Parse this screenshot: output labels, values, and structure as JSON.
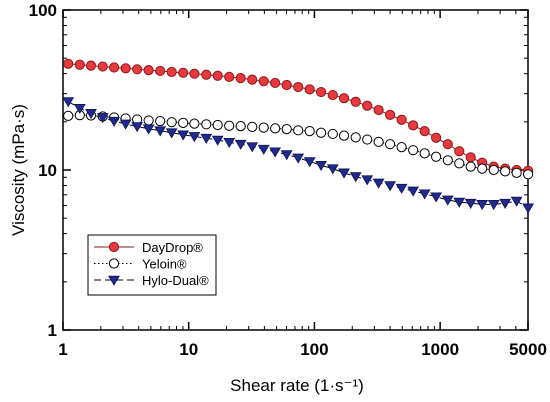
{
  "chart_data": {
    "type": "scatter",
    "title": "",
    "xlabel": "Shear rate (1·s⁻¹)",
    "ylabel": "Viscosity (mPa·s)",
    "x_scale": "log",
    "y_scale": "log",
    "xlim": [
      1,
      5000
    ],
    "ylim": [
      1,
      100
    ],
    "x_ticks": [
      {
        "value": 1,
        "label": "1"
      },
      {
        "value": 10,
        "label": "10"
      },
      {
        "value": 100,
        "label": "100"
      },
      {
        "value": 1000,
        "label": "1000"
      },
      {
        "value": 5000,
        "label": "5000"
      }
    ],
    "y_ticks": [
      {
        "value": 1,
        "label": "1"
      },
      {
        "value": 10,
        "label": "10"
      },
      {
        "value": 100,
        "label": "100"
      }
    ],
    "grid": false,
    "legend_position": "bottom-left",
    "x": [
      1.1,
      1.36,
      1.67,
      2.07,
      2.55,
      3.15,
      3.89,
      4.8,
      5.93,
      7.32,
      9.03,
      11.1,
      13.8,
      17.0,
      21.0,
      25.9,
      32.0,
      39.5,
      48.7,
      60.2,
      74.3,
      91.7,
      113,
      140,
      172,
      213,
      263,
      324,
      400,
      494,
      610,
      753,
      929,
      1150,
      1420,
      1750,
      2160,
      2670,
      3290,
      4060,
      5010
    ],
    "series": [
      {
        "name": "DayDrop®",
        "marker": "circle",
        "color": "#e8393f",
        "edge_color": "#8a1a1a",
        "line_style": "solid",
        "line_color": "#8b1a1a",
        "values": [
          46.1,
          45.5,
          44.9,
          44.3,
          43.7,
          43.2,
          42.6,
          42.1,
          41.6,
          41.0,
          40.5,
          40.0,
          39.4,
          38.8,
          38.2,
          37.5,
          36.7,
          35.9,
          35.0,
          34.0,
          33.0,
          31.9,
          30.7,
          29.4,
          28.1,
          26.7,
          25.2,
          23.7,
          22.1,
          20.6,
          19.0,
          17.5,
          15.9,
          14.5,
          13.1,
          12.0,
          11.1,
          10.5,
          10.2,
          10.0,
          9.9
        ]
      },
      {
        "name": "Yeloin®",
        "marker": "circle-open",
        "color": "#ffffff",
        "edge_color": "#000000",
        "line_style": "dotted",
        "line_color": "#000000",
        "values": [
          21.8,
          22.0,
          21.9,
          21.6,
          21.3,
          21.0,
          20.7,
          20.4,
          20.2,
          19.9,
          19.7,
          19.5,
          19.3,
          19.1,
          18.9,
          18.8,
          18.6,
          18.4,
          18.2,
          18.0,
          17.7,
          17.5,
          17.1,
          16.8,
          16.4,
          16.0,
          15.5,
          15.0,
          14.5,
          13.9,
          13.3,
          12.7,
          12.1,
          11.5,
          11.0,
          10.5,
          10.2,
          10.0,
          9.8,
          9.6,
          9.4
        ]
      },
      {
        "name": "Hylo-Dual®",
        "marker": "triangle-down",
        "color": "#1f2a8c",
        "edge_color": "#0d1356",
        "line_style": "dashed",
        "line_color": "#000000",
        "values": [
          26.8,
          24.3,
          22.6,
          21.3,
          20.2,
          19.4,
          18.7,
          18.1,
          17.6,
          17.1,
          16.6,
          16.2,
          15.8,
          15.4,
          14.9,
          14.5,
          14.0,
          13.5,
          13.0,
          12.5,
          11.9,
          11.3,
          10.7,
          10.2,
          9.6,
          9.1,
          8.7,
          8.3,
          8.0,
          7.7,
          7.4,
          7.1,
          6.8,
          6.5,
          6.3,
          6.2,
          6.1,
          6.1,
          6.2,
          6.4,
          5.8
        ]
      }
    ]
  }
}
